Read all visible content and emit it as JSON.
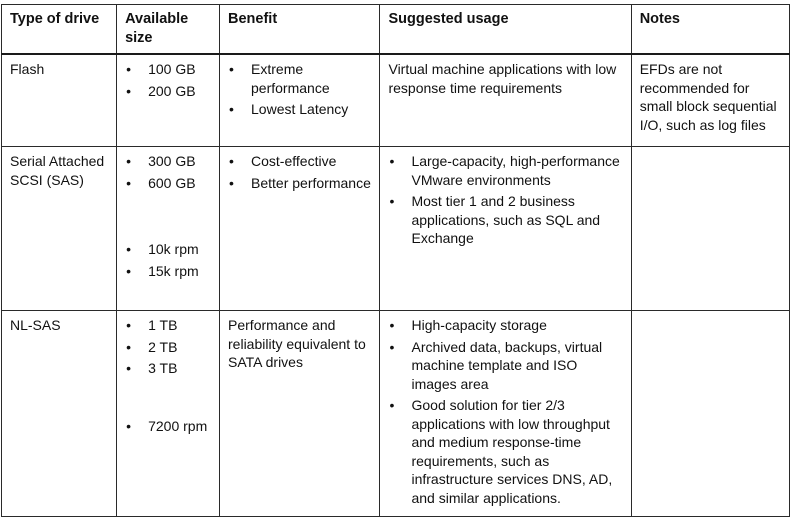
{
  "headers": [
    "Type of drive",
    "Available size",
    "Benefit",
    "Suggested usage",
    "Notes"
  ],
  "rows": [
    {
      "type": "Flash",
      "sizes": [
        "100 GB",
        "200 GB"
      ],
      "benefit_items": [
        "Extreme performance",
        "Lowest Latency"
      ],
      "usage_text": "Virtual machine applications with low response time requirements",
      "notes": "EFDs are not recommended for small block sequential I/O, such as log files"
    },
    {
      "type": "Serial Attached SCSI (SAS)",
      "sizes": [
        "300 GB",
        "600 GB"
      ],
      "speeds": [
        "10k rpm",
        "15k rpm"
      ],
      "benefit_items": [
        "Cost-effective",
        "Better performance"
      ],
      "usage_items": [
        "Large-capacity, high-performance VMware environments",
        "Most tier 1 and 2 business applications, such as SQL and Exchange"
      ],
      "notes": ""
    },
    {
      "type": "NL-SAS",
      "sizes": [
        "1 TB",
        "2 TB",
        "3 TB"
      ],
      "speeds": [
        "7200 rpm"
      ],
      "benefit_text": "Performance and reliability equivalent to SATA drives",
      "usage_items": [
        "High-capacity storage",
        "Archived data, backups, virtual machine template and ISO images area",
        "Good solution for tier 2/3 applications with low throughput and medium response-time requirements, such as infrastructure services DNS, AD, and similar applications."
      ],
      "notes": ""
    }
  ]
}
